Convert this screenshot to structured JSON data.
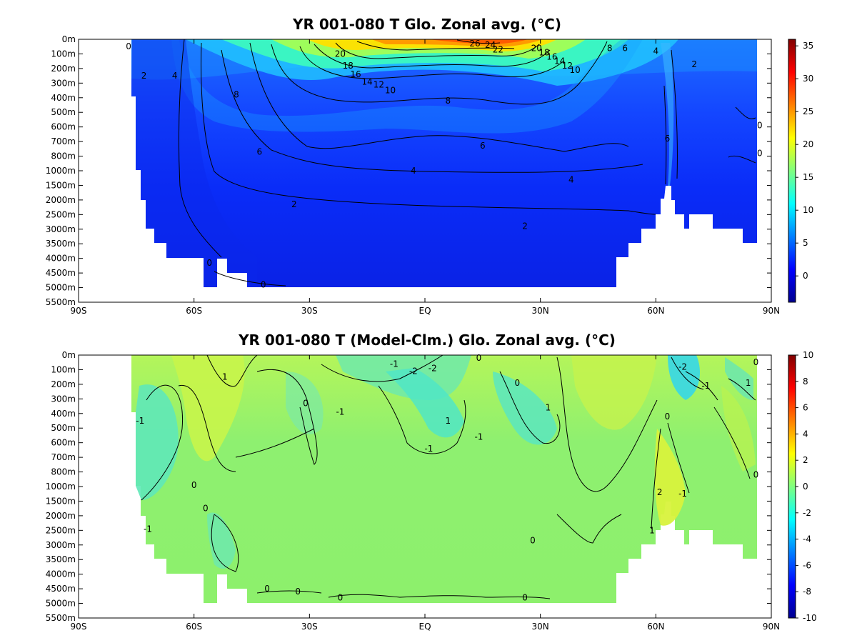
{
  "chart_data": [
    {
      "type": "heatmap",
      "title": "YR 001-080 T Glo. Zonal avg. (°C)",
      "x_ticks": [
        "90S",
        "60S",
        "30S",
        "EQ",
        "30N",
        "60N",
        "90N"
      ],
      "y_ticks": [
        "0m",
        "100m",
        "200m",
        "300m",
        "400m",
        "500m",
        "600m",
        "700m",
        "800m",
        "1000m",
        "1500m",
        "2000m",
        "2500m",
        "3000m",
        "3500m",
        "4000m",
        "4500m",
        "5000m",
        "5500m"
      ],
      "colorbar_ticks": [
        35,
        30,
        25,
        20,
        15,
        10,
        5,
        0
      ],
      "colorbar_range": [
        -4,
        36
      ],
      "colormap": "jet",
      "contour_labels": [
        {
          "text": "0",
          "x": -77,
          "y": 0.5
        },
        {
          "text": "2",
          "x": -73,
          "y": 2.5
        },
        {
          "text": "4",
          "x": -65,
          "y": 2.5
        },
        {
          "text": "8",
          "x": -49,
          "y": 3.8
        },
        {
          "text": "6",
          "x": -43,
          "y": 7.7
        },
        {
          "text": "4",
          "x": -3,
          "y": 9.0
        },
        {
          "text": "2",
          "x": -34,
          "y": 11.3
        },
        {
          "text": "2",
          "x": 26,
          "y": 12.8
        },
        {
          "text": "4",
          "x": 38,
          "y": 9.6
        },
        {
          "text": "6",
          "x": 15,
          "y": 7.3
        },
        {
          "text": "8",
          "x": 6,
          "y": 4.2
        },
        {
          "text": "0",
          "x": -56,
          "y": 15.3
        },
        {
          "text": "0",
          "x": -42,
          "y": 16.8
        },
        {
          "text": "20",
          "x": -22,
          "y": 1.0
        },
        {
          "text": "18",
          "x": -20,
          "y": 1.8
        },
        {
          "text": "16",
          "x": -18,
          "y": 2.4
        },
        {
          "text": "14",
          "x": -15,
          "y": 2.9
        },
        {
          "text": "12",
          "x": -12,
          "y": 3.1
        },
        {
          "text": "10",
          "x": -9,
          "y": 3.5
        },
        {
          "text": "26",
          "x": 13,
          "y": 0.3
        },
        {
          "text": "24",
          "x": 17,
          "y": 0.4
        },
        {
          "text": "22",
          "x": 19,
          "y": 0.7
        },
        {
          "text": "20",
          "x": 29,
          "y": 0.6
        },
        {
          "text": "18",
          "x": 31,
          "y": 0.9
        },
        {
          "text": "16",
          "x": 33,
          "y": 1.2
        },
        {
          "text": "14",
          "x": 35,
          "y": 1.5
        },
        {
          "text": "12",
          "x": 37,
          "y": 1.8
        },
        {
          "text": "10",
          "x": 39,
          "y": 2.1
        },
        {
          "text": "8",
          "x": 48,
          "y": 0.6
        },
        {
          "text": "6",
          "x": 52,
          "y": 0.6
        },
        {
          "text": "4",
          "x": 60,
          "y": 0.8
        },
        {
          "text": "2",
          "x": 70,
          "y": 1.7
        },
        {
          "text": "6",
          "x": 63,
          "y": 6.8
        },
        {
          "text": "0",
          "x": 87,
          "y": 5.9
        },
        {
          "text": "0",
          "x": 87,
          "y": 7.8
        }
      ]
    },
    {
      "type": "heatmap",
      "title": "YR 001-080 T (Model-Clm.) Glo. Zonal avg. (°C)",
      "x_ticks": [
        "90S",
        "60S",
        "30S",
        "EQ",
        "30N",
        "60N",
        "90N"
      ],
      "y_ticks": [
        "0m",
        "100m",
        "200m",
        "300m",
        "400m",
        "500m",
        "600m",
        "700m",
        "800m",
        "1000m",
        "1500m",
        "2000m",
        "2500m",
        "3000m",
        "3500m",
        "4000m",
        "4500m",
        "5000m",
        "5500m"
      ],
      "colorbar_ticks": [
        10,
        8,
        6,
        4,
        2,
        0,
        -2,
        -4,
        -6,
        -8,
        -10
      ],
      "colorbar_range": [
        -10,
        10
      ],
      "colormap": "jet",
      "contour_labels": [
        {
          "text": "1",
          "x": -52,
          "y": 1.5
        },
        {
          "text": "0",
          "x": -31,
          "y": 3.3
        },
        {
          "text": "-1",
          "x": -22,
          "y": 3.9
        },
        {
          "text": "-1",
          "x": -74,
          "y": 4.5
        },
        {
          "text": "0",
          "x": -60,
          "y": 8.9
        },
        {
          "text": "0",
          "x": -57,
          "y": 10.5
        },
        {
          "text": "-1",
          "x": -72,
          "y": 11.9
        },
        {
          "text": "0",
          "x": -41,
          "y": 16.0
        },
        {
          "text": "0",
          "x": -33,
          "y": 16.2
        },
        {
          "text": "0",
          "x": -22,
          "y": 16.6
        },
        {
          "text": "-1",
          "x": -8,
          "y": 0.6
        },
        {
          "text": "-2",
          "x": -3,
          "y": 1.1
        },
        {
          "text": "-2",
          "x": 2,
          "y": 0.9
        },
        {
          "text": "0",
          "x": 14,
          "y": 0.2
        },
        {
          "text": "0",
          "x": 24,
          "y": 1.9
        },
        {
          "text": "1",
          "x": 6,
          "y": 4.5
        },
        {
          "text": "-1",
          "x": 1,
          "y": 6.4
        },
        {
          "text": "-1",
          "x": 14,
          "y": 5.6
        },
        {
          "text": "1",
          "x": 32,
          "y": 3.6
        },
        {
          "text": "0",
          "x": 28,
          "y": 12.7
        },
        {
          "text": "0",
          "x": 26,
          "y": 16.6
        },
        {
          "text": "0",
          "x": 63,
          "y": 4.2
        },
        {
          "text": "-2",
          "x": 67,
          "y": 0.8
        },
        {
          "text": "-1",
          "x": 73,
          "y": 2.1
        },
        {
          "text": "1",
          "x": 84,
          "y": 1.9
        },
        {
          "text": "0",
          "x": 86,
          "y": 0.5
        },
        {
          "text": "0",
          "x": 86,
          "y": 8.2
        },
        {
          "text": "2",
          "x": 61,
          "y": 9.4
        },
        {
          "text": "-1",
          "x": 67,
          "y": 9.5
        },
        {
          "text": "1",
          "x": 59,
          "y": 12.0
        }
      ]
    }
  ]
}
